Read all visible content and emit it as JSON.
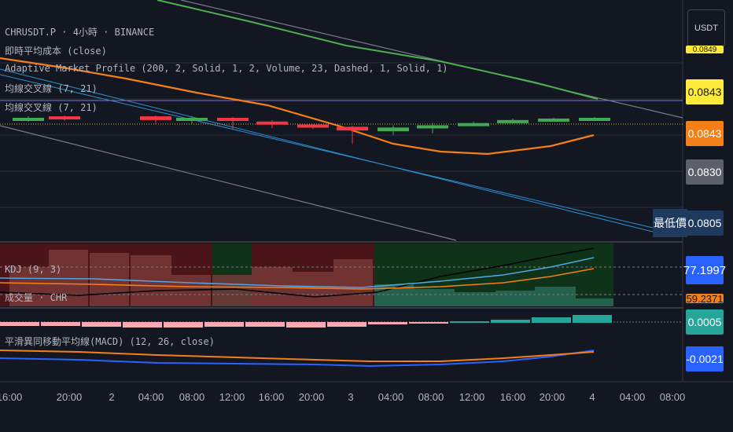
{
  "header": {
    "symbol_line": "CHRUSDT.P · 4小時 · BINANCE",
    "indicators": [
      "即時平均成本 (close)",
      "Adaptive Market Profile (200, 2, Solid, 1, 2, Volume, 23, Dashed, 1, Solid, 1)",
      "均線交叉線 (7, 21)",
      "均線交叉線 (7, 21)"
    ]
  },
  "currency": "USDT",
  "price_axis": {
    "top_cut": "0.0849",
    "tag1": "0.0843",
    "tag2": "0.0843",
    "tag3": "0.0830",
    "low_label": "最低價",
    "low_value": "0.0805"
  },
  "oscillator": {
    "kdj_label": "KDJ (9, 3)",
    "volume_label": "成交量 · CHR",
    "kdj_value": "77.1997",
    "kdj_value2": "59.2371",
    "macd_label": "平滑異同移動平均線(MACD) (12, 26, close)",
    "macd_value1": "0.0005",
    "macd_value2": "-0.0021"
  },
  "time_axis": [
    "16:00",
    "20:00",
    "2",
    "04:00",
    "08:00",
    "12:00",
    "16:00",
    "20:00",
    "3",
    "04:00",
    "08:00",
    "12:00",
    "16:00",
    "20:00",
    "4",
    "04:00",
    "08:00"
  ],
  "colors": {
    "up": "#43a853",
    "down": "#f23645",
    "ma_orange": "#f57f17",
    "ma_green": "#4caf50",
    "price_yellow": "#ffeb3b",
    "price_orange": "#f57f17",
    "price_gray": "#5d606b",
    "kdj_blue": "#2962ff",
    "macd_teal": "#26a69a"
  },
  "candles": [
    {
      "o": 0.0841,
      "h": 0.0845,
      "l": 0.0838,
      "c": 0.0843
    },
    {
      "o": 0.0845,
      "h": 0.0846,
      "l": 0.0839,
      "c": 0.0842
    },
    {
      "o": 0.0845,
      "h": 0.0846,
      "l": 0.0834,
      "c": 0.084
    },
    {
      "o": 0.084,
      "h": 0.0845,
      "l": 0.0835,
      "c": 0.0843
    },
    {
      "o": 0.0843,
      "h": 0.0844,
      "l": 0.0828,
      "c": 0.0839
    },
    {
      "o": 0.0838,
      "h": 0.084,
      "l": 0.0829,
      "c": 0.0835
    },
    {
      "o": 0.0834,
      "h": 0.0834,
      "l": 0.0828,
      "c": 0.0831
    },
    {
      "o": 0.0831,
      "h": 0.0832,
      "l": 0.0808,
      "c": 0.0826
    },
    {
      "o": 0.0825,
      "h": 0.0833,
      "l": 0.082,
      "c": 0.083
    },
    {
      "o": 0.0829,
      "h": 0.0836,
      "l": 0.0822,
      "c": 0.0833
    },
    {
      "o": 0.0833,
      "h": 0.0838,
      "l": 0.0832,
      "c": 0.0836
    },
    {
      "o": 0.0836,
      "h": 0.0842,
      "l": 0.0836,
      "c": 0.084
    },
    {
      "o": 0.084,
      "h": 0.0843,
      "l": 0.0839,
      "c": 0.0842
    },
    {
      "o": 0.0842,
      "h": 0.0844,
      "l": 0.0841,
      "c": 0.0843
    }
  ]
}
